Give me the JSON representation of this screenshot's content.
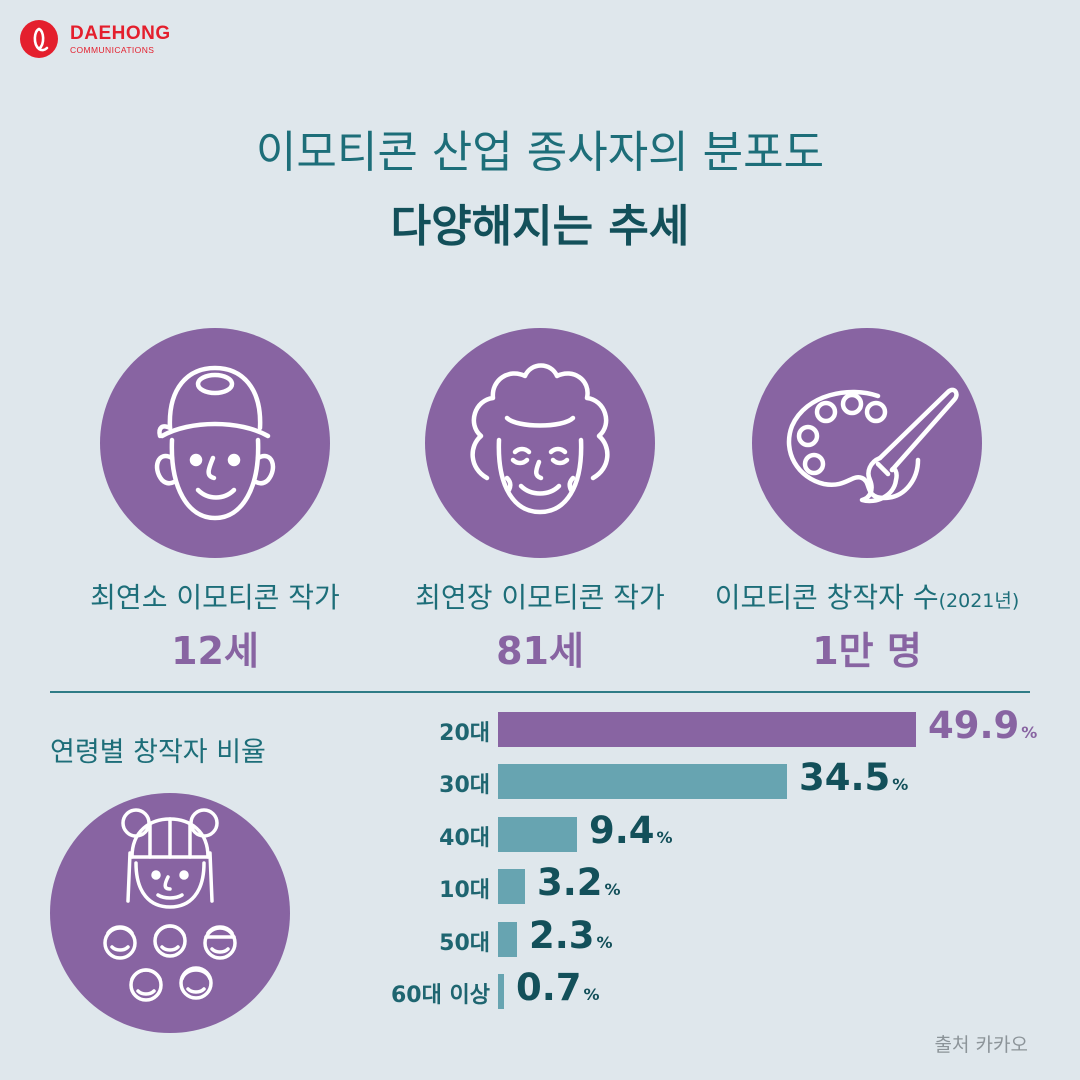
{
  "brand": {
    "name": "DAEHONG",
    "sub": "COMMUNICATIONS",
    "color": "#e41f2d"
  },
  "title": {
    "line1": "이모티콘 산업 종사자의 분포도",
    "line2": "다양해지는 추세"
  },
  "stats": [
    {
      "icon": "boy-with-cap-icon",
      "label": "최연소 이모티콘 작가",
      "label_small": "",
      "value": "12세"
    },
    {
      "icon": "grandmother-icon",
      "label": "최연장 이모티콘 작가",
      "label_small": "",
      "value": "81세"
    },
    {
      "icon": "palette-brush-icon",
      "label": "이모티콘 창작자 수",
      "label_small": "(2021년)",
      "value": "1만 명"
    }
  ],
  "age_section": {
    "title": "연령별 창작자 비율",
    "icon": "creators-group-icon"
  },
  "chart_data": {
    "type": "bar",
    "orientation": "horizontal",
    "categories": [
      "20대",
      "30대",
      "40대",
      "10대",
      "50대",
      "60대 이상"
    ],
    "values": [
      49.9,
      34.5,
      9.4,
      3.2,
      2.3,
      0.7
    ],
    "value_labels": [
      "49.9",
      "34.5",
      "9.4",
      "3.2",
      "2.3",
      "0.7"
    ],
    "unit": "%",
    "colors": [
      "#8864a2",
      "#67a4b1",
      "#67a4b1",
      "#67a4b1",
      "#67a4b1",
      "#67a4b1"
    ],
    "label_colors": [
      "#8864a2",
      "#13505a",
      "#13505a",
      "#13505a",
      "#13505a",
      "#13505a"
    ],
    "xlim": [
      0,
      49.9
    ]
  },
  "source": "출처  카카오"
}
